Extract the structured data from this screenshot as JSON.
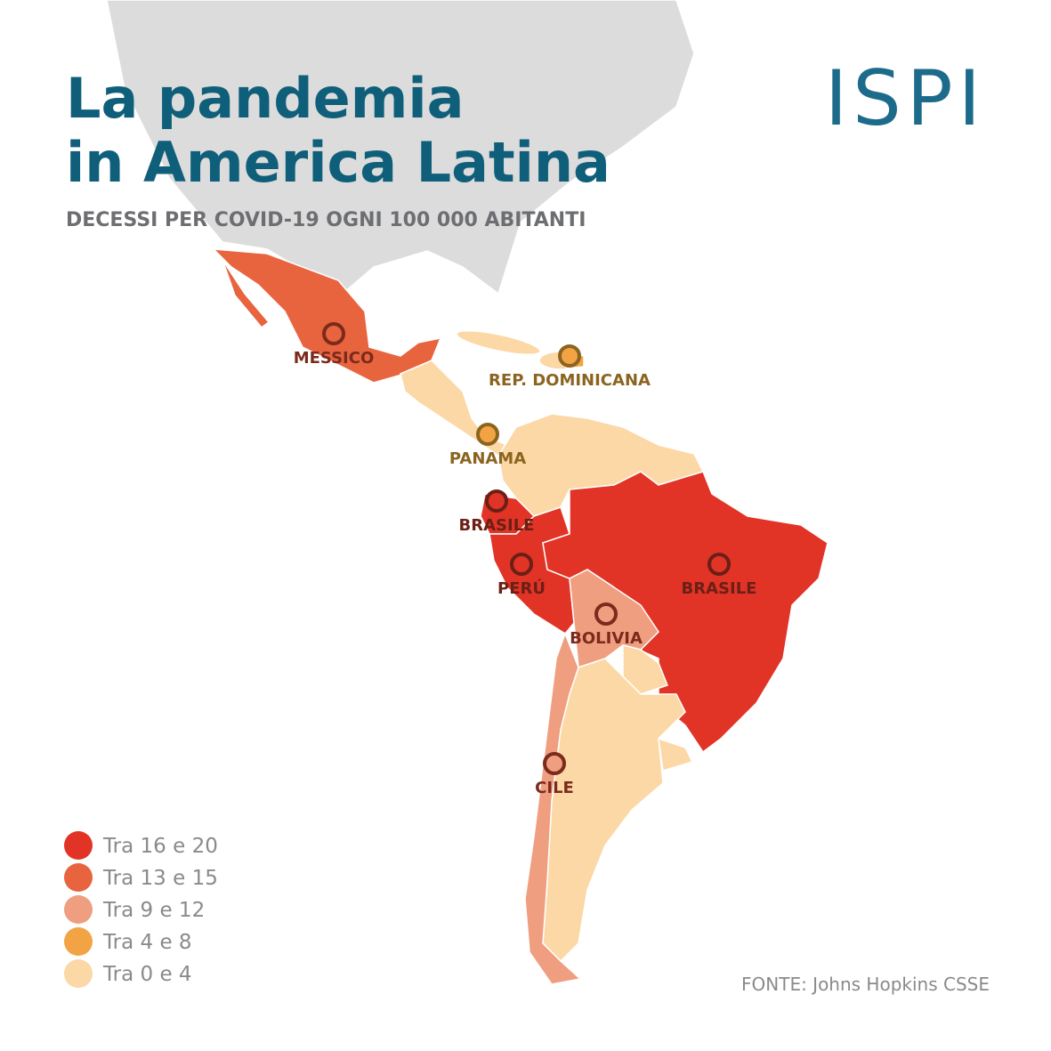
{
  "title": [
    "La pandemia",
    "in America Latina"
  ],
  "subtitle": "DECESSI PER COVID-19 OGNI 100 000 ABITANTI",
  "logo": "ISPI",
  "legend": [
    {
      "label": "Tra 16 e 20",
      "color": "#e13426"
    },
    {
      "label": "Tra 13 e 15",
      "color": "#e8643f"
    },
    {
      "label": "Tra 9 e 12",
      "color": "#ef9e80"
    },
    {
      "label": "Tra 4 e 8",
      "color": "#f2a444"
    },
    {
      "label": "Tra 0 e 4",
      "color": "#fbd8a5"
    }
  ],
  "markers": [
    {
      "label": "MESSICO",
      "color": "#e8643f",
      "text_color": "#7b2a1c"
    },
    {
      "label": "REP. DOMINICANA",
      "color": "#f2a444",
      "text_color": "#8b6420"
    },
    {
      "label": "PANAMA",
      "color": "#f2a444",
      "text_color": "#8b6420"
    },
    {
      "label": "BRASILE",
      "color": "#e13426",
      "text_color": "#6b1f16"
    },
    {
      "label": "PERÚ",
      "color": "#e13426",
      "text_color": "#6b1f16"
    },
    {
      "label": "BRASILE",
      "color": "#e13426",
      "text_color": "#6b1f16"
    },
    {
      "label": "BOLIVIA",
      "color": "#ef9e80",
      "text_color": "#7b2a1c"
    },
    {
      "label": "CILE",
      "color": "#ef9e80",
      "text_color": "#7b2a1c"
    }
  ],
  "source": "FONTE: Johns Hopkins CSSE"
}
